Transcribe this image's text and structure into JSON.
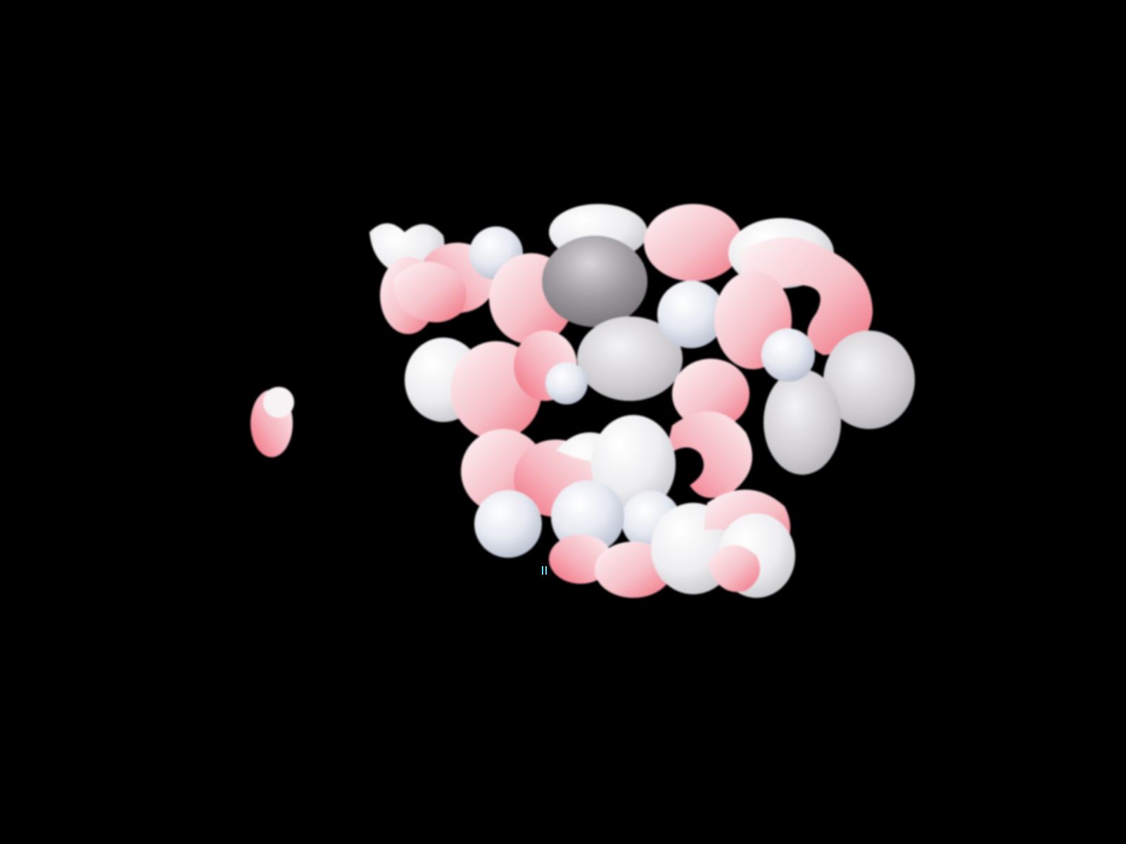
{
  "scene": {
    "description_visible_text": "",
    "palette": {
      "background": "#000000",
      "white": "#f4f4f6",
      "pink": "#f27e8c",
      "blush": "#f6c4cb",
      "silver": "#8e8a8f",
      "pale_blue": "#dfe3ee"
    }
  }
}
